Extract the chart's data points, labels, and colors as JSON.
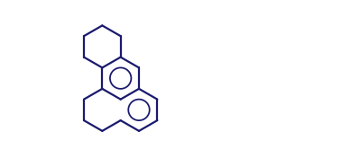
{
  "bg_color": "#ffffff",
  "line_color": "#1a1a6e",
  "line_width": 1.6,
  "figsize": [
    3.99,
    1.86
  ],
  "dpi": 100
}
